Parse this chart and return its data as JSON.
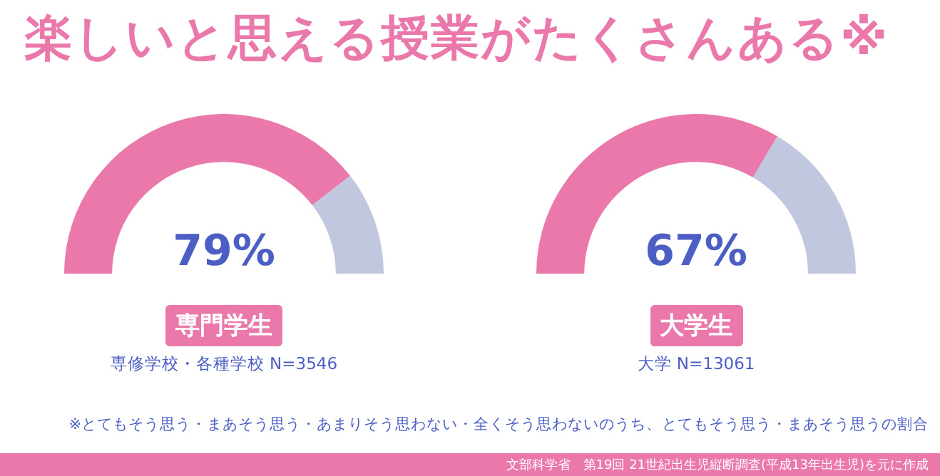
{
  "chart_data": [
    {
      "type": "other",
      "title": "楽しいと思える授業がたくさんある※",
      "annotations": [
        "※とてもそう思う・まあそう思う・あまりそう思わない・全くそう思わないのうち、とてもそう思う・まあそう思うの割合",
        "文部科学省　第19回 21世紀出生児縦断調査(平成13年出生児)を元に作成"
      ]
    },
    {
      "type": "donut",
      "title": "専門学生",
      "subtitle": "専修学校・各種学校 N=3546",
      "categories": [
        null,
        null
      ],
      "values": [
        79,
        21
      ],
      "colors": [
        "#ea78aa",
        "#c2c7e0"
      ],
      "value_labels": [
        "79%",
        null
      ]
    },
    {
      "type": "donut",
      "title": "大学生",
      "subtitle": "大学 N=13061",
      "categories": [
        null,
        null
      ],
      "values": [
        67,
        33
      ],
      "colors": [
        "#ea78aa",
        "#c2c7e0"
      ],
      "value_labels": [
        "67%",
        null
      ]
    }
  ]
}
